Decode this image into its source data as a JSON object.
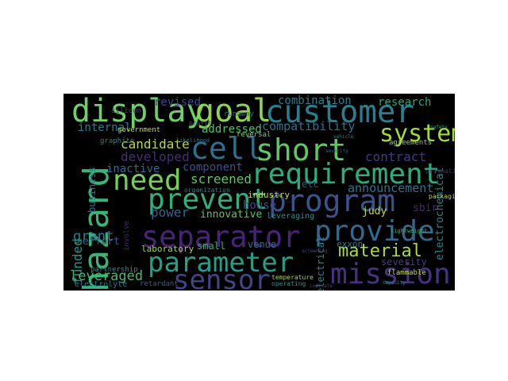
{
  "cloud": {
    "words": [
      {
        "text": "display",
        "color": "#6fcf68"
      },
      {
        "text": "goal",
        "color": "#8ed44d"
      },
      {
        "text": "customer",
        "color": "#2a7f8e"
      },
      {
        "text": "cell",
        "color": "#2e6e8e"
      },
      {
        "text": "short",
        "color": "#5ec962"
      },
      {
        "text": "system",
        "color": "#a5db36"
      },
      {
        "text": "hazard",
        "color": "#35b779"
      },
      {
        "text": "requirement",
        "color": "#29af7f"
      },
      {
        "text": "need",
        "color": "#73d055"
      },
      {
        "text": "prevent",
        "color": "#2db27d"
      },
      {
        "text": "program",
        "color": "#3b528b"
      },
      {
        "text": "separator",
        "color": "#482475"
      },
      {
        "text": "provide",
        "color": "#31688e"
      },
      {
        "text": "parameter",
        "color": "#1fa187"
      },
      {
        "text": "mission",
        "color": "#46327e"
      },
      {
        "text": "sensor",
        "color": "#414487"
      },
      {
        "text": "material",
        "color": "#addc30"
      },
      {
        "text": "candidate",
        "color": "#b8de29"
      },
      {
        "text": "combination",
        "color": "#27808e"
      },
      {
        "text": "research",
        "color": "#22a884"
      },
      {
        "text": "compatibility",
        "color": "#2c728e"
      },
      {
        "text": "revised",
        "color": "#3e4989"
      },
      {
        "text": "internal",
        "color": "#287c8e"
      },
      {
        "text": "addressed",
        "color": "#4ac16d"
      },
      {
        "text": "developed",
        "color": "#472d7b"
      },
      {
        "text": "contract",
        "color": "#453781"
      },
      {
        "text": "inactive",
        "color": "#306a8e"
      },
      {
        "text": "component",
        "color": "#3b528b"
      },
      {
        "text": "screened",
        "color": "#5cc863"
      },
      {
        "text": "announcement",
        "color": "#2a768e"
      },
      {
        "text": "electrochemical",
        "color": "#23898e"
      },
      {
        "text": "funded",
        "color": "#1f988b"
      },
      {
        "text": "power",
        "color": "#31678e"
      },
      {
        "text": "innovative",
        "color": "#54c568"
      },
      {
        "text": "house",
        "color": "#3d4e8a"
      },
      {
        "text": "judy",
        "color": "#c2df23"
      },
      {
        "text": "sbir",
        "color": "#482878"
      },
      {
        "text": "grant",
        "color": "#25848e"
      },
      {
        "text": "effort",
        "color": "#38598c"
      },
      {
        "text": "leveraged",
        "color": "#3dbc74"
      },
      {
        "text": "electrical",
        "color": "#24868e"
      },
      {
        "text": "business",
        "color": "#2a788e"
      },
      {
        "text": "small",
        "color": "#31b57b"
      },
      {
        "text": "laboratory",
        "color": "#a2da37"
      },
      {
        "text": "venue",
        "color": "#2d718e"
      },
      {
        "text": "severity",
        "color": "#443a83"
      },
      {
        "text": "exxon",
        "color": "#24878e"
      },
      {
        "text": "industry",
        "color": "#cae11f"
      },
      {
        "text": "leveraging",
        "color": "#20928c"
      },
      {
        "text": "electrolyte",
        "color": "#287d8e"
      },
      {
        "text": "retardant",
        "color": "#35608d"
      },
      {
        "text": "partnership",
        "color": "#21908d"
      },
      {
        "text": "government",
        "color": "#c0df25"
      },
      {
        "text": "graphite",
        "color": "#23888e"
      },
      {
        "text": "silicon",
        "color": "#3f4788"
      },
      {
        "text": "agreements",
        "color": "#8bd646"
      },
      {
        "text": "flammable",
        "color": "#c5e021"
      },
      {
        "text": "temperature",
        "color": "#a0da39"
      },
      {
        "text": "operating",
        "color": "#1e9b8a"
      },
      {
        "text": "involve",
        "color": "#482475"
      },
      {
        "text": "runaway",
        "color": "#2e6f8e"
      },
      {
        "text": "reversal",
        "color": "#7fd34e"
      },
      {
        "text": "etc",
        "color": "#3c508b"
      },
      {
        "text": "organization",
        "color": "#25838e"
      },
      {
        "text": "packaging",
        "color": "#b0dd2f"
      },
      {
        "text": "profit",
        "color": "#3a538b"
      },
      {
        "text": "prismatic",
        "color": "#472c7a"
      },
      {
        "text": "lightweight",
        "color": "#31b57b"
      },
      {
        "text": "likelihood",
        "color": "#2c728e"
      },
      {
        "text": "indicate",
        "color": "#3e4a89"
      },
      {
        "text": "severity",
        "color": "#2f6c8e"
      },
      {
        "text": "vehicle",
        "color": "#26828e"
      },
      {
        "text": "capacity",
        "color": "#1f958b"
      },
      {
        "text": "screening",
        "color": "#3f4889"
      },
      {
        "text": "safety",
        "color": "#29af7f"
      }
    ]
  }
}
